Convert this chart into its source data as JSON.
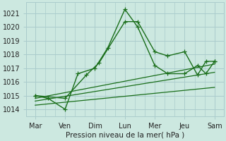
{
  "background_color": "#cce8e0",
  "grid_color": "#aacccc",
  "line_color": "#1a6e1a",
  "xlabel": "Pression niveau de la mer( hPa )",
  "ylim": [
    1013.5,
    1021.8
  ],
  "yticks": [
    1014,
    1015,
    1016,
    1017,
    1018,
    1019,
    1020,
    1021
  ],
  "x_day_labels": [
    "Mar",
    "Ven",
    "Dim",
    "Lun",
    "Mer",
    "Jeu",
    "Sam"
  ],
  "x_day_positions": [
    0,
    1,
    2,
    3,
    4,
    5,
    6
  ],
  "xlim": [
    -0.3,
    6.3
  ],
  "series1_x": [
    0,
    0.43,
    1,
    1.43,
    2,
    2.43,
    3,
    3.43,
    4,
    4.43,
    5,
    5.43,
    5.71,
    6
  ],
  "series1_y": [
    1015.0,
    1014.8,
    1014.0,
    1016.6,
    1017.0,
    1018.5,
    1021.3,
    1020.0,
    1017.2,
    1016.6,
    1016.6,
    1017.2,
    1016.6,
    1017.5
  ],
  "series2_x": [
    0,
    1,
    1.71,
    2.14,
    3,
    3.43,
    4,
    4.43,
    5,
    5.43,
    5.71,
    6
  ],
  "series2_y": [
    1015.0,
    1014.8,
    1016.5,
    1017.4,
    1020.4,
    1020.4,
    1018.2,
    1017.9,
    1018.2,
    1016.5,
    1017.5,
    1017.5
  ],
  "trend1_x": [
    0,
    6
  ],
  "trend1_y": [
    1014.8,
    1017.3
  ],
  "trend2_x": [
    0,
    6
  ],
  "trend2_y": [
    1014.6,
    1016.7
  ],
  "trend3_x": [
    0,
    6
  ],
  "trend3_y": [
    1014.3,
    1015.6
  ]
}
